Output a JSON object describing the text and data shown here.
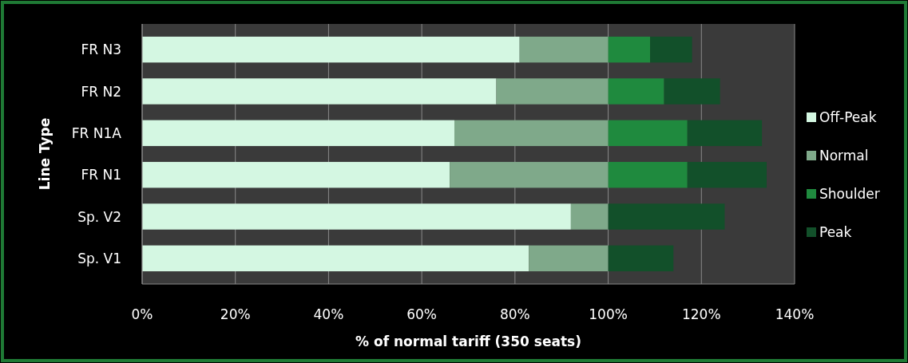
{
  "chart_data": {
    "type": "bar",
    "orientation": "horizontal",
    "stacked": true,
    "xlabel": "% of normal tariff (350 seats)",
    "ylabel": "Line Type",
    "categories": [
      "FR N3",
      "FR N2",
      "FR N1A",
      "FR N1",
      "Sp. V2",
      "Sp. V1"
    ],
    "series": [
      {
        "name": "Off-Peak",
        "color": "#d4f7e2",
        "values": [
          81,
          76,
          67,
          66,
          92,
          83
        ]
      },
      {
        "name": "Normal",
        "color": "#7fa98a",
        "values": [
          19,
          24,
          33,
          34,
          8,
          17
        ]
      },
      {
        "name": "Shoulder",
        "color": "#1f8a3e",
        "values": [
          9,
          12,
          17,
          17,
          0,
          0
        ]
      },
      {
        "name": "Peak",
        "color": "#12502a",
        "values": [
          9,
          12,
          16,
          17,
          25,
          14
        ]
      }
    ],
    "xlim": [
      0,
      140
    ],
    "xticks": [
      {
        "value": 0,
        "label": "0%"
      },
      {
        "value": 20,
        "label": "20%"
      },
      {
        "value": 40,
        "label": "40%"
      },
      {
        "value": 60,
        "label": "60%"
      },
      {
        "value": 80,
        "label": "80%"
      },
      {
        "value": 100,
        "label": "100%"
      },
      {
        "value": 120,
        "label": "120%"
      },
      {
        "value": 140,
        "label": "140%"
      }
    ],
    "grid": "x",
    "legend": "right"
  }
}
